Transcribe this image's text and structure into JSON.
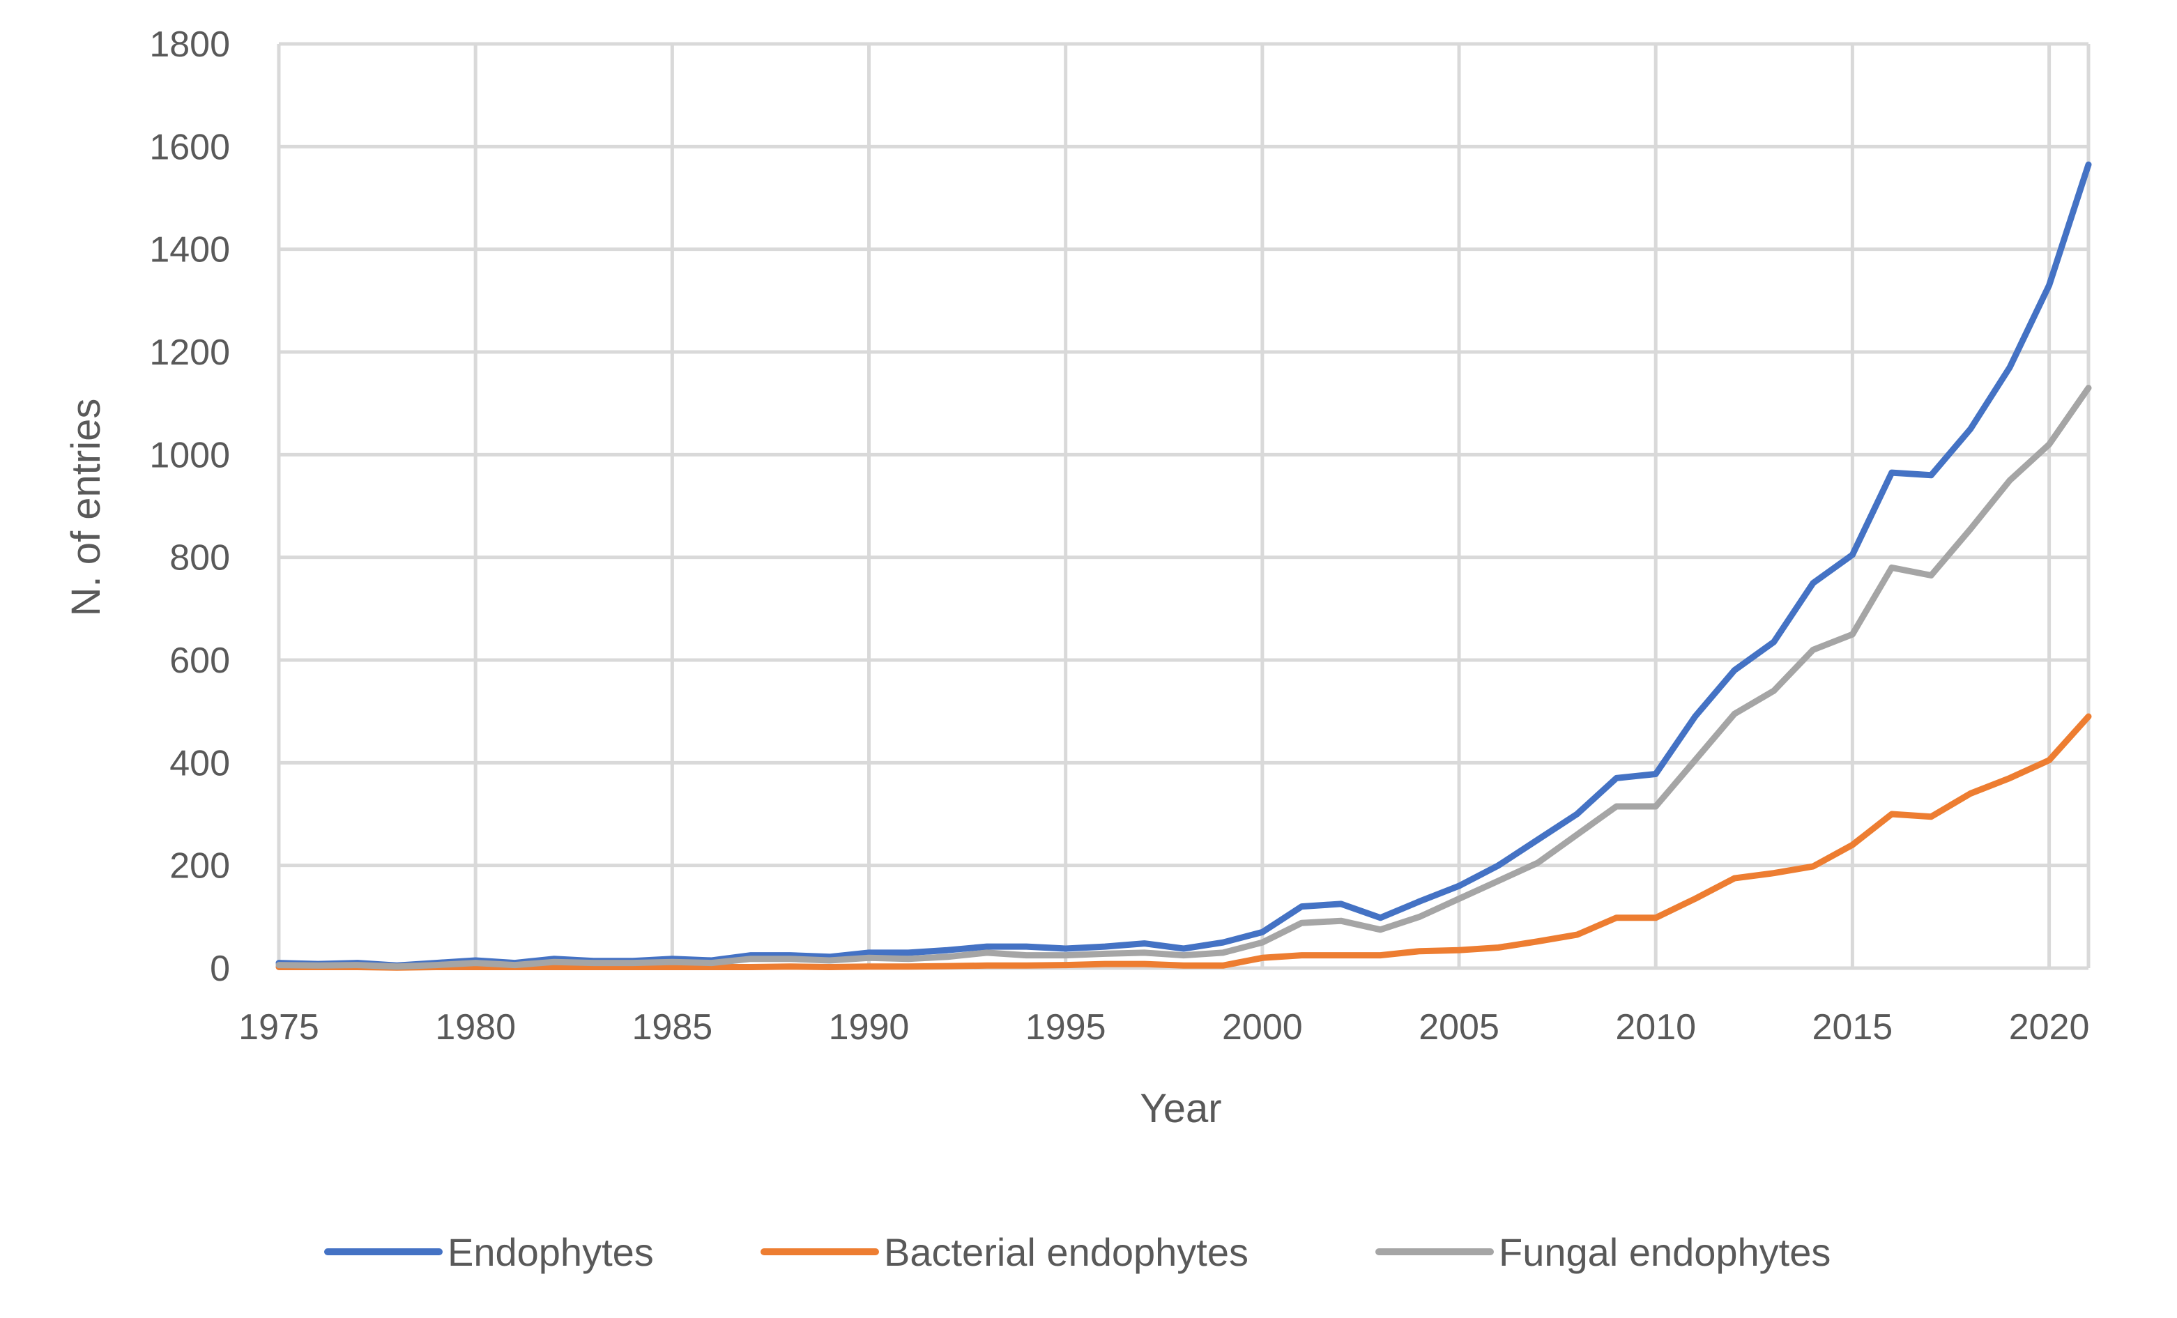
{
  "chart_data": {
    "type": "line",
    "title": "",
    "xlabel": "Year",
    "ylabel": "N. of entries",
    "xlim": [
      1975,
      2021
    ],
    "ylim": [
      0,
      1800
    ],
    "x_ticks": [
      "1975",
      "1980",
      "1985",
      "1990",
      "1995",
      "2000",
      "2005",
      "2010",
      "2015",
      "2020"
    ],
    "y_ticks": [
      "0",
      "200",
      "400",
      "600",
      "800",
      "1000",
      "1200",
      "1400",
      "1600",
      "1800"
    ],
    "grid": true,
    "legend_position": "bottom",
    "x": [
      1975,
      1976,
      1977,
      1978,
      1979,
      1980,
      1981,
      1982,
      1983,
      1984,
      1985,
      1986,
      1987,
      1988,
      1989,
      1990,
      1991,
      1992,
      1993,
      1994,
      1995,
      1996,
      1997,
      1998,
      1999,
      2000,
      2001,
      2002,
      2003,
      2004,
      2005,
      2006,
      2007,
      2008,
      2009,
      2010,
      2011,
      2012,
      2013,
      2014,
      2015,
      2016,
      2017,
      2018,
      2019,
      2020,
      2021
    ],
    "series": [
      {
        "name": "Endophytes",
        "color": "#4472c4",
        "values": [
          10,
          8,
          10,
          5,
          10,
          15,
          10,
          18,
          14,
          14,
          18,
          15,
          25,
          25,
          22,
          30,
          30,
          35,
          42,
          42,
          38,
          42,
          48,
          38,
          50,
          70,
          120,
          125,
          98,
          130,
          160,
          200,
          250,
          300,
          370,
          378,
          490,
          580,
          635,
          750,
          805,
          965,
          960,
          1050,
          1170,
          1330,
          1565
        ]
      },
      {
        "name": "Bacterial endophytes",
        "color": "#ed7d31",
        "values": [
          2,
          2,
          2,
          1,
          2,
          2,
          2,
          2,
          2,
          2,
          2,
          2,
          2,
          3,
          2,
          3,
          3,
          4,
          5,
          5,
          6,
          8,
          8,
          5,
          5,
          20,
          25,
          25,
          25,
          33,
          35,
          40,
          52,
          65,
          98,
          98,
          135,
          175,
          185,
          198,
          240,
          300,
          295,
          340,
          370,
          405,
          490
        ]
      },
      {
        "name": "Fungal endophytes",
        "color": "#a5a5a5",
        "values": [
          6,
          5,
          6,
          3,
          6,
          10,
          6,
          12,
          10,
          10,
          12,
          10,
          18,
          18,
          15,
          20,
          18,
          22,
          30,
          25,
          25,
          28,
          30,
          25,
          30,
          50,
          88,
          92,
          75,
          100,
          135,
          170,
          205,
          260,
          315,
          315,
          405,
          495,
          540,
          620,
          650,
          780,
          765,
          855,
          950,
          1020,
          1130
        ]
      }
    ]
  }
}
